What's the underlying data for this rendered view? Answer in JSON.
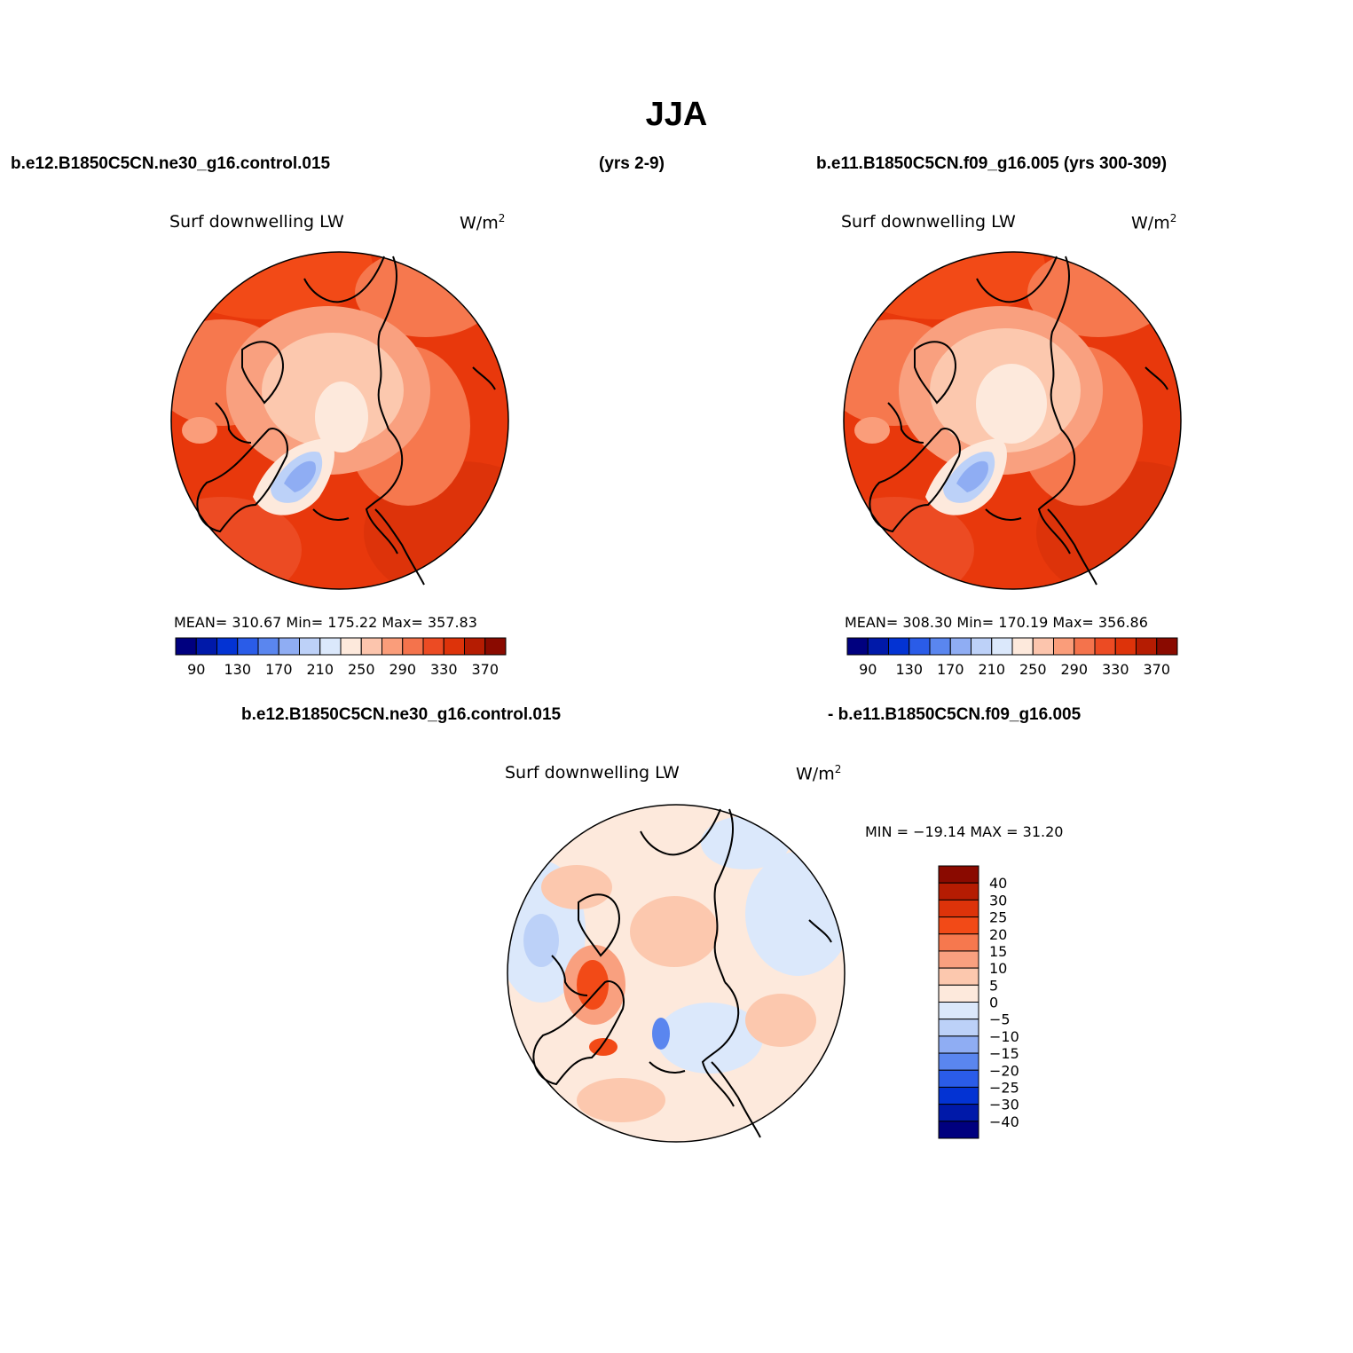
{
  "title": "JJA",
  "headers": {
    "left_case": "b.e12.B1850C5CN.ne30_g16.control.015",
    "left_years": "(yrs 2-9)",
    "right_case": "b.e11.B1850C5CN.f09_g16.005 (yrs 300-309)",
    "diff_left": "b.e12.B1850C5CN.ne30_g16.control.015",
    "diff_right": "- b.e11.B1850C5CN.f09_g16.005"
  },
  "panels": [
    {
      "variable": "Surf downwelling LW",
      "units": "W/m",
      "units_sup": "2",
      "stats": "MEAN= 310.67   Min= 175.22   Max= 357.83"
    },
    {
      "variable": "Surf downwelling LW",
      "units": "W/m",
      "units_sup": "2",
      "stats": "MEAN= 308.30   Min= 170.19   Max= 356.86"
    },
    {
      "variable": "Surf downwelling LW",
      "units": "W/m",
      "units_sup": "2",
      "stats": "MIN = −19.14 MAX =  31.20"
    }
  ],
  "colorbar_abs": {
    "colors": [
      "#00007f",
      "#0019a9",
      "#0333d3",
      "#2a5ce8",
      "#5a86ef",
      "#8fadf3",
      "#bdd1f8",
      "#dbe8fb",
      "#fde9dc",
      "#fcc5ad",
      "#fa9d7a",
      "#f4734c",
      "#ec4b23",
      "#dd330a",
      "#b51c02",
      "#8a0a00"
    ],
    "labels": [
      "90",
      "130",
      "170",
      "210",
      "250",
      "290",
      "330",
      "370"
    ]
  },
  "colorbar_diff": {
    "colors": [
      "#8a0a00",
      "#b51c02",
      "#dd330a",
      "#f24a17",
      "#f6784e",
      "#f9a07f",
      "#fcc8ae",
      "#fde9dc",
      "#dbe8fb",
      "#bcd1f8",
      "#8fadf3",
      "#5a86ef",
      "#2a5ce8",
      "#0333d3",
      "#0019a9",
      "#00007f"
    ],
    "labels": [
      "40",
      "30",
      "25",
      "20",
      "15",
      "10",
      "5",
      "0",
      "−5",
      "−10",
      "−15",
      "−20",
      "−25",
      "−30",
      "−40"
    ]
  }
}
